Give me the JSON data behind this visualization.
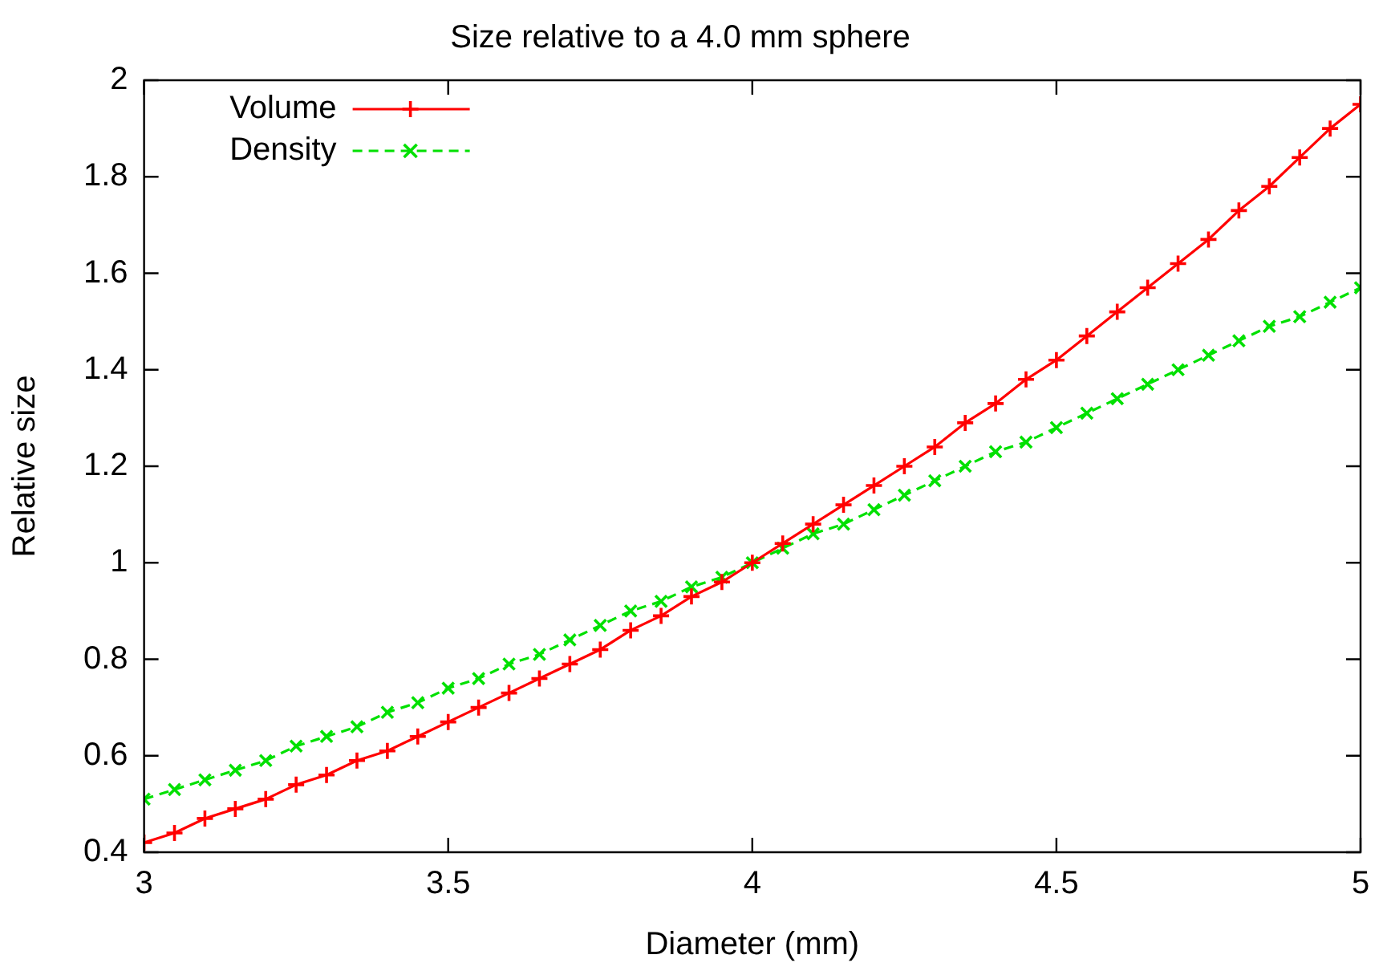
{
  "chart_data": {
    "type": "line",
    "title": "Size relative to a 4.0 mm sphere",
    "xlabel": "Diameter (mm)",
    "ylabel": "Relative size",
    "x": [
      3,
      3.05,
      3.1,
      3.15,
      3.2,
      3.25,
      3.3,
      3.35,
      3.4,
      3.45,
      3.5,
      3.55,
      3.6,
      3.65,
      3.7,
      3.75,
      3.8,
      3.85,
      3.9,
      3.95,
      4,
      4.05,
      4.1,
      4.15,
      4.2,
      4.25,
      4.3,
      4.35,
      4.4,
      4.45,
      4.5,
      4.55,
      4.6,
      4.65,
      4.7,
      4.75,
      4.8,
      4.85,
      4.9,
      4.95,
      5
    ],
    "series": [
      {
        "name": "Volume",
        "color": "#ff0000",
        "line_style": "solid",
        "marker": "cross",
        "values": [
          0.42,
          0.44,
          0.47,
          0.49,
          0.51,
          0.54,
          0.56,
          0.59,
          0.61,
          0.64,
          0.67,
          0.7,
          0.73,
          0.76,
          0.79,
          0.82,
          0.86,
          0.89,
          0.93,
          0.96,
          1.0,
          1.04,
          1.08,
          1.12,
          1.16,
          1.2,
          1.24,
          1.29,
          1.33,
          1.38,
          1.42,
          1.47,
          1.52,
          1.57,
          1.62,
          1.67,
          1.73,
          1.78,
          1.84,
          1.9,
          1.95
        ]
      },
      {
        "name": "Density",
        "color": "#00e000",
        "line_style": "dashed",
        "marker": "x",
        "values": [
          0.51,
          0.53,
          0.55,
          0.57,
          0.59,
          0.62,
          0.64,
          0.66,
          0.69,
          0.71,
          0.74,
          0.76,
          0.79,
          0.81,
          0.84,
          0.87,
          0.9,
          0.92,
          0.95,
          0.97,
          1.0,
          1.03,
          1.06,
          1.08,
          1.11,
          1.14,
          1.17,
          1.2,
          1.23,
          1.25,
          1.28,
          1.31,
          1.34,
          1.37,
          1.4,
          1.43,
          1.46,
          1.49,
          1.51,
          1.54,
          1.57
        ]
      }
    ],
    "xlim": [
      3,
      5
    ],
    "xticks": [
      3,
      3.5,
      4,
      4.5,
      5
    ],
    "ylim": [
      0.4,
      2
    ],
    "yticks": [
      0.4,
      0.6,
      0.8,
      1,
      1.2,
      1.4,
      1.6,
      1.8,
      2
    ],
    "grid": false,
    "legend": "top left"
  }
}
